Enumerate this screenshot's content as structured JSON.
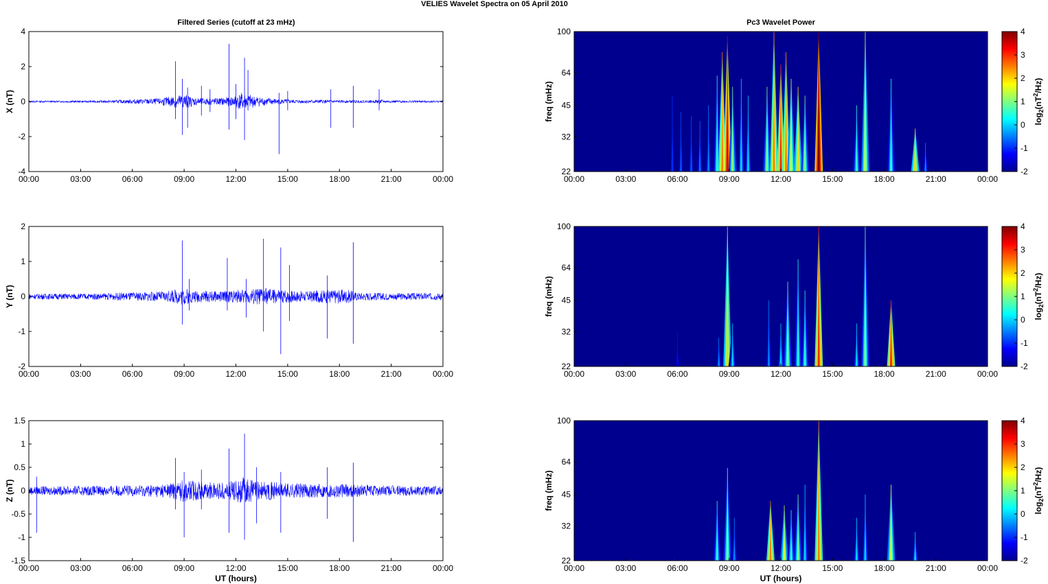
{
  "figure": {
    "suptitle": "VELIES Wavelet Spectra on 05 April    2010",
    "left_title": "Filtered Series (cutoff at 23 mHz)",
    "right_title": "Pc3 Wavelet Power",
    "x_label": "UT (hours)"
  },
  "colors": {
    "trace": "#0000ff",
    "background_power": "#00008f",
    "axis": "#000000"
  },
  "chart_data": [
    {
      "type": "line",
      "ylabel": "X (nT)",
      "xlabel": "",
      "xlim": [
        0,
        24
      ],
      "ylim": [
        -4,
        4
      ],
      "xticks": [
        "00:00",
        "03:00",
        "06:00",
        "09:00",
        "12:00",
        "15:00",
        "18:00",
        "21:00",
        "00:00"
      ],
      "yticks": [
        -4,
        -2,
        0,
        2,
        4
      ],
      "noise_amplitude": [
        [
          0,
          0.05
        ],
        [
          2,
          0.05
        ],
        [
          4,
          0.06
        ],
        [
          5.5,
          0.1
        ],
        [
          6.5,
          0.15
        ],
        [
          7.5,
          0.18
        ],
        [
          8.5,
          0.35
        ],
        [
          9,
          0.45
        ],
        [
          9.5,
          0.25
        ],
        [
          10,
          0.2
        ],
        [
          11,
          0.2
        ],
        [
          11.8,
          0.3
        ],
        [
          12.3,
          0.5
        ],
        [
          12.8,
          0.4
        ],
        [
          13.5,
          0.25
        ],
        [
          14.5,
          0.15
        ],
        [
          15.5,
          0.1
        ],
        [
          17,
          0.1
        ],
        [
          18,
          0.08
        ],
        [
          20,
          0.07
        ],
        [
          20.3,
          0.15
        ],
        [
          20.6,
          0.07
        ],
        [
          24,
          0.05
        ]
      ],
      "spikes": [
        [
          8.5,
          2.3,
          -1.0
        ],
        [
          8.9,
          1.3,
          -1.9
        ],
        [
          9.2,
          0.8,
          -1.5
        ],
        [
          10,
          0.9,
          -0.8
        ],
        [
          10.5,
          0.7,
          -0.6
        ],
        [
          11.6,
          3.3,
          -1.6
        ],
        [
          12,
          1.0,
          -1.0
        ],
        [
          12.5,
          2.5,
          -2.2
        ],
        [
          12.7,
          1.8,
          -0.5
        ],
        [
          14.5,
          0.5,
          -3.0
        ],
        [
          15,
          0.6,
          -0.5
        ],
        [
          17.5,
          0.7,
          -1.5
        ],
        [
          18.8,
          0.9,
          -1.5
        ],
        [
          20.3,
          0.7,
          -0.5
        ]
      ]
    },
    {
      "type": "line",
      "ylabel": "Y (nT)",
      "xlabel": "",
      "xlim": [
        0,
        24
      ],
      "ylim": [
        -2,
        2
      ],
      "xticks": [
        "00:00",
        "03:00",
        "06:00",
        "09:00",
        "12:00",
        "15:00",
        "18:00",
        "21:00",
        "00:00"
      ],
      "yticks": [
        -2,
        -1,
        0,
        1,
        2
      ],
      "noise_amplitude": [
        [
          0,
          0.08
        ],
        [
          4,
          0.09
        ],
        [
          6,
          0.12
        ],
        [
          8,
          0.15
        ],
        [
          9,
          0.25
        ],
        [
          9.5,
          0.18
        ],
        [
          11,
          0.15
        ],
        [
          12.5,
          0.2
        ],
        [
          13.5,
          0.25
        ],
        [
          14.5,
          0.2
        ],
        [
          16,
          0.15
        ],
        [
          17.5,
          0.2
        ],
        [
          18.5,
          0.2
        ],
        [
          19,
          0.12
        ],
        [
          21,
          0.1
        ],
        [
          24,
          0.1
        ]
      ],
      "spikes": [
        [
          8.9,
          1.6,
          -0.8
        ],
        [
          9.3,
          0.5,
          -0.4
        ],
        [
          11.5,
          1.1,
          -0.4
        ],
        [
          12.6,
          0.5,
          -0.6
        ],
        [
          13.6,
          1.65,
          -1.0
        ],
        [
          14.6,
          1.4,
          -1.65
        ],
        [
          15.1,
          0.9,
          -0.7
        ],
        [
          17.3,
          0.6,
          -1.2
        ],
        [
          18.8,
          1.55,
          -1.35
        ]
      ]
    },
    {
      "type": "line",
      "ylabel": "Z (nT)",
      "xlabel": "UT (hours)",
      "xlim": [
        0,
        24
      ],
      "ylim": [
        -1.5,
        1.5
      ],
      "xticks": [
        "00:00",
        "03:00",
        "06:00",
        "09:00",
        "12:00",
        "15:00",
        "18:00",
        "21:00",
        "00:00"
      ],
      "yticks": [
        -1.5,
        -1,
        -0.5,
        0,
        0.5,
        1,
        1.5
      ],
      "noise_amplitude": [
        [
          0,
          0.09
        ],
        [
          3,
          0.1
        ],
        [
          6,
          0.12
        ],
        [
          8,
          0.15
        ],
        [
          9,
          0.25
        ],
        [
          10,
          0.18
        ],
        [
          11.5,
          0.18
        ],
        [
          12.5,
          0.3
        ],
        [
          13.2,
          0.22
        ],
        [
          14.5,
          0.18
        ],
        [
          16,
          0.15
        ],
        [
          18,
          0.15
        ],
        [
          20,
          0.12
        ],
        [
          24,
          0.1
        ]
      ],
      "spikes": [
        [
          0.45,
          0.3,
          -0.9
        ],
        [
          8.5,
          0.7,
          -0.4
        ],
        [
          9,
          0.4,
          -1.0
        ],
        [
          10,
          0.45,
          -0.4
        ],
        [
          11.6,
          0.9,
          -0.9
        ],
        [
          12.5,
          1.22,
          -1.05
        ],
        [
          13.2,
          0.5,
          -0.7
        ],
        [
          14.6,
          0.4,
          -0.9
        ],
        [
          17.3,
          0.5,
          -0.6
        ],
        [
          18.8,
          0.6,
          -1.1
        ]
      ]
    },
    {
      "type": "heatmap",
      "ylabel": "freq (mHz)",
      "xlabel": "",
      "colorbar_label": "log2(nT^2/Hz)",
      "xlim": [
        0,
        24
      ],
      "ylim": [
        22,
        100
      ],
      "xticks": [
        "00:00",
        "03:00",
        "06:00",
        "09:00",
        "12:00",
        "15:00",
        "18:00",
        "21:00",
        "00:00"
      ],
      "yticks": [
        22,
        32,
        45,
        64,
        100
      ],
      "clim": [
        -2,
        4
      ],
      "cticks": [
        -2,
        -1,
        0,
        1,
        2,
        3,
        4
      ],
      "bursts": [
        [
          5.7,
          50,
          -1.0
        ],
        [
          6.2,
          42,
          -0.8
        ],
        [
          6.8,
          40,
          -0.8
        ],
        [
          7.3,
          38,
          -0.6
        ],
        [
          7.8,
          45,
          -0.5
        ],
        [
          8.3,
          62,
          0.5
        ],
        [
          8.6,
          80,
          2.5
        ],
        [
          8.9,
          95,
          3.5
        ],
        [
          9.2,
          55,
          1.0
        ],
        [
          9.7,
          60,
          0.0
        ],
        [
          10.1,
          50,
          0.0
        ],
        [
          11.2,
          55,
          1.0
        ],
        [
          11.6,
          100,
          2.5
        ],
        [
          12.0,
          70,
          3.0
        ],
        [
          12.3,
          80,
          2.5
        ],
        [
          12.6,
          60,
          1.5
        ],
        [
          13.0,
          55,
          2.0
        ],
        [
          13.4,
          50,
          1.0
        ],
        [
          14.2,
          100,
          4.0
        ],
        [
          16.4,
          45,
          0.5
        ],
        [
          16.9,
          100,
          1.5
        ],
        [
          18.4,
          60,
          0.5
        ],
        [
          19.8,
          35,
          2.0
        ],
        [
          20.4,
          30,
          -0.5
        ]
      ]
    },
    {
      "type": "heatmap",
      "ylabel": "freq (mHz)",
      "xlabel": "",
      "colorbar_label": "log2(nT^2/Hz)",
      "xlim": [
        0,
        24
      ],
      "ylim": [
        22,
        100
      ],
      "xticks": [
        "00:00",
        "03:00",
        "06:00",
        "09:00",
        "12:00",
        "15:00",
        "18:00",
        "21:00",
        "00:00"
      ],
      "yticks": [
        22,
        32,
        45,
        64,
        100
      ],
      "clim": [
        -2,
        4
      ],
      "cticks": [
        -2,
        -1,
        0,
        1,
        2,
        3,
        4
      ],
      "bursts": [
        [
          6.0,
          32,
          -1.2
        ],
        [
          8.4,
          30,
          -0.5
        ],
        [
          8.9,
          100,
          2.0
        ],
        [
          9.2,
          35,
          0.0
        ],
        [
          11.3,
          45,
          -0.5
        ],
        [
          12.0,
          35,
          0.0
        ],
        [
          12.4,
          55,
          1.0
        ],
        [
          13.0,
          70,
          0.5
        ],
        [
          13.4,
          50,
          0.5
        ],
        [
          14.2,
          100,
          3.0
        ],
        [
          16.4,
          35,
          0.0
        ],
        [
          16.9,
          100,
          1.0
        ],
        [
          18.4,
          45,
          3.0
        ]
      ]
    },
    {
      "type": "heatmap",
      "ylabel": "freq (mHz)",
      "xlabel": "UT (hours)",
      "colorbar_label": "log2(nT^2/Hz)",
      "xlim": [
        0,
        24
      ],
      "ylim": [
        22,
        100
      ],
      "xticks": [
        "00:00",
        "03:00",
        "06:00",
        "09:00",
        "12:00",
        "15:00",
        "18:00",
        "21:00",
        "00:00"
      ],
      "yticks": [
        22,
        32,
        45,
        64,
        100
      ],
      "clim": [
        -2,
        4
      ],
      "cticks": [
        -2,
        -1,
        0,
        1,
        2,
        3,
        4
      ],
      "bursts": [
        [
          8.3,
          42,
          0.5
        ],
        [
          8.9,
          60,
          1.0
        ],
        [
          9.3,
          35,
          -0.5
        ],
        [
          11.4,
          42,
          2.5
        ],
        [
          12.2,
          40,
          1.5
        ],
        [
          12.6,
          38,
          0.5
        ],
        [
          13.0,
          45,
          1.0
        ],
        [
          13.4,
          50,
          0.0
        ],
        [
          14.2,
          100,
          2.5
        ],
        [
          16.4,
          35,
          0.0
        ],
        [
          16.9,
          45,
          0.0
        ],
        [
          18.4,
          50,
          1.5
        ],
        [
          19.8,
          30,
          0.0
        ]
      ]
    }
  ]
}
